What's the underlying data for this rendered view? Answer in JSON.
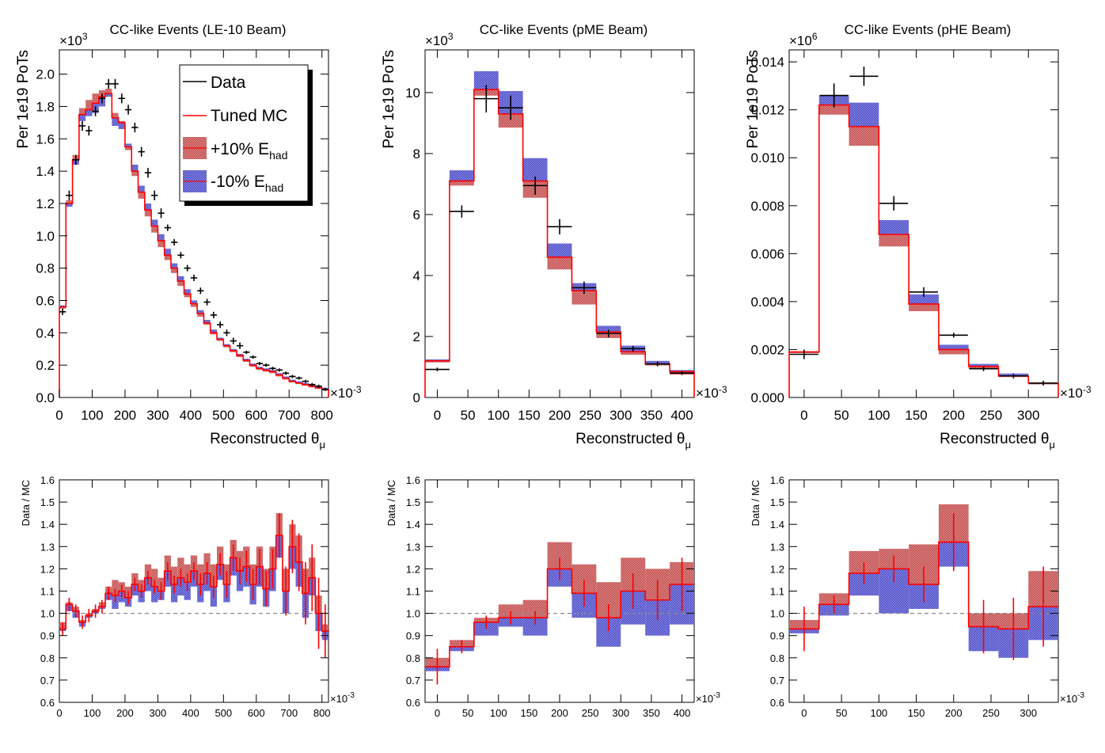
{
  "colors": {
    "data": "#000000",
    "tuned_mc": "#ff0000",
    "plus10_band": "#c44a4a",
    "minus10_band": "#4a4ac8",
    "reference_line": "#888888"
  },
  "legend": {
    "entries": [
      {
        "label": "Data",
        "type": "line",
        "color": "#000000"
      },
      {
        "label": "Tuned MC",
        "type": "line",
        "color": "#ff0000"
      },
      {
        "label": "+10% E",
        "sub": "had",
        "type": "band",
        "color": "#c44a4a"
      },
      {
        "label": "-10% E",
        "sub": "had",
        "type": "band",
        "color": "#4a4ac8"
      }
    ]
  },
  "chart_data": [
    {
      "type": "line",
      "title": "CC-like Events (LE-10 Beam)",
      "ylabel": "Per 1e19 PoTs",
      "xlabel": "Reconstructed θ",
      "xlabel_sub": "μ",
      "y_multiplier": "×10",
      "y_multiplier_exp": "3",
      "x_multiplier": "×10",
      "x_multiplier_exp": "-3",
      "xlim": [
        0,
        820
      ],
      "ylim": [
        0,
        2.15
      ],
      "xticks": [
        "0",
        "100",
        "200",
        "300",
        "400",
        "500",
        "600",
        "700",
        "800"
      ],
      "yticks": [
        "0.0",
        "0.2",
        "0.4",
        "0.6",
        "0.8",
        "1.0",
        "1.2",
        "1.4",
        "1.6",
        "1.8",
        "2.0"
      ],
      "legend_placement": "top-right",
      "bin_edges": [
        0,
        20,
        40,
        60,
        80,
        100,
        120,
        140,
        160,
        180,
        200,
        220,
        240,
        260,
        280,
        300,
        320,
        340,
        360,
        380,
        400,
        420,
        440,
        460,
        480,
        500,
        520,
        540,
        560,
        580,
        600,
        620,
        640,
        660,
        680,
        700,
        720,
        740,
        760,
        780,
        800,
        820
      ],
      "series": [
        {
          "name": "Tuned MC",
          "values": [
            0.56,
            1.2,
            1.47,
            1.75,
            1.78,
            1.82,
            1.86,
            1.88,
            1.73,
            1.7,
            1.55,
            1.4,
            1.27,
            1.16,
            1.06,
            0.97,
            0.88,
            0.8,
            0.72,
            0.64,
            0.58,
            0.52,
            0.46,
            0.4,
            0.36,
            0.32,
            0.29,
            0.26,
            0.23,
            0.2,
            0.18,
            0.17,
            0.16,
            0.14,
            0.12,
            0.1,
            0.09,
            0.08,
            0.07,
            0.06,
            0.05
          ]
        },
        {
          "name": "+10% E_had",
          "values": [
            0.55,
            1.22,
            1.5,
            1.79,
            1.84,
            1.88,
            1.9,
            1.91,
            1.76,
            1.71,
            1.53,
            1.37,
            1.23,
            1.12,
            1.02,
            0.93,
            0.85,
            0.77,
            0.69,
            0.62,
            0.56,
            0.5,
            0.45,
            0.39,
            0.35,
            0.31,
            0.28,
            0.25,
            0.22,
            0.19,
            0.17,
            0.16,
            0.15,
            0.13,
            0.11,
            0.1,
            0.09,
            0.08,
            0.07,
            0.06,
            0.05
          ]
        },
        {
          "name": "-10% E_had",
          "values": [
            0.57,
            1.18,
            1.44,
            1.71,
            1.74,
            1.76,
            1.8,
            1.86,
            1.68,
            1.66,
            1.57,
            1.44,
            1.31,
            1.2,
            1.1,
            1.01,
            0.92,
            0.83,
            0.75,
            0.67,
            0.6,
            0.54,
            0.48,
            0.42,
            0.37,
            0.33,
            0.3,
            0.27,
            0.24,
            0.21,
            0.19,
            0.18,
            0.17,
            0.15,
            0.13,
            0.11,
            0.1,
            0.09,
            0.08,
            0.07,
            0.06
          ]
        },
        {
          "name": "Data",
          "values": [
            0.53,
            1.25,
            1.47,
            1.68,
            1.65,
            1.77,
            1.85,
            1.94,
            1.94,
            1.85,
            1.78,
            1.67,
            1.52,
            1.39,
            1.25,
            1.14,
            1.05,
            0.96,
            0.88,
            0.8,
            0.74,
            0.66,
            0.59,
            0.51,
            0.45,
            0.4,
            0.35,
            0.32,
            0.28,
            0.25,
            0.21,
            0.2,
            0.18,
            0.17,
            0.15,
            0.13,
            0.12,
            0.1,
            0.08,
            0.07,
            0.05
          ],
          "errors": [
            0.02,
            0.03,
            0.03,
            0.03,
            0.03,
            0.03,
            0.03,
            0.03,
            0.03,
            0.03,
            0.03,
            0.03,
            0.03,
            0.03,
            0.03,
            0.03,
            0.02,
            0.02,
            0.02,
            0.02,
            0.02,
            0.02,
            0.02,
            0.02,
            0.02,
            0.02,
            0.02,
            0.02,
            0.01,
            0.01,
            0.01,
            0.01,
            0.01,
            0.01,
            0.01,
            0.01,
            0.01,
            0.01,
            0.01,
            0.01,
            0.01
          ]
        }
      ]
    },
    {
      "type": "line",
      "title": "CC-like Events (pME Beam)",
      "ylabel": "Per 1e19 PoTs",
      "xlabel": "Reconstructed θ",
      "xlabel_sub": "μ",
      "y_multiplier": "×10",
      "y_multiplier_exp": "3",
      "x_multiplier": "×10",
      "x_multiplier_exp": "-3",
      "xlim": [
        -20,
        420
      ],
      "ylim": [
        0,
        11.4
      ],
      "xticks": [
        "0",
        "50",
        "100",
        "150",
        "200",
        "250",
        "300",
        "350",
        "400"
      ],
      "yticks": [
        "0",
        "2",
        "4",
        "6",
        "8",
        "10"
      ],
      "bin_edges": [
        -20,
        20,
        60,
        100,
        140,
        180,
        220,
        260,
        300,
        340,
        380,
        420
      ],
      "series": [
        {
          "name": "Tuned MC",
          "values": [
            1.2,
            7.1,
            10.1,
            9.3,
            7.1,
            4.6,
            3.5,
            2.15,
            1.5,
            1.1,
            0.85
          ]
        },
        {
          "name": "+10% E_had",
          "values": [
            1.15,
            6.95,
            9.9,
            8.85,
            6.55,
            4.2,
            3.05,
            1.95,
            1.4,
            1.05,
            0.75
          ]
        },
        {
          "name": "-10% E_had",
          "values": [
            1.25,
            7.45,
            10.7,
            10.05,
            7.85,
            5.05,
            3.75,
            2.35,
            1.7,
            1.2,
            0.9
          ]
        },
        {
          "name": "Data",
          "values": [
            0.92,
            6.1,
            9.8,
            9.5,
            6.95,
            5.6,
            3.6,
            2.1,
            1.6,
            1.1,
            0.8
          ],
          "errors": [
            0.06,
            0.2,
            0.45,
            0.4,
            0.3,
            0.25,
            0.2,
            0.12,
            0.1,
            0.08,
            0.06
          ]
        }
      ]
    },
    {
      "type": "line",
      "title": "CC-like Events (pHE Beam)",
      "ylabel": "Per 1e19 PoTs",
      "xlabel": "Reconstructed θ",
      "xlabel_sub": "μ",
      "y_multiplier": "×10",
      "y_multiplier_exp": "6",
      "x_multiplier": "×10",
      "x_multiplier_exp": "-3",
      "xlim": [
        -20,
        340
      ],
      "ylim": [
        0,
        0.0145
      ],
      "xticks": [
        "0",
        "50",
        "100",
        "150",
        "200",
        "250",
        "300"
      ],
      "yticks": [
        "0.000",
        "0.002",
        "0.004",
        "0.006",
        "0.008",
        "0.010",
        "0.012",
        "0.014"
      ],
      "bin_edges": [
        -20,
        20,
        60,
        100,
        140,
        180,
        220,
        260,
        300,
        340
      ],
      "series": [
        {
          "name": "Tuned MC",
          "values": [
            0.0019,
            0.0122,
            0.0113,
            0.0068,
            0.0039,
            0.002,
            0.0013,
            0.0009,
            0.0006
          ]
        },
        {
          "name": "+10% E_had",
          "values": [
            0.0019,
            0.0118,
            0.0105,
            0.0063,
            0.0036,
            0.0018,
            0.0012,
            0.0009,
            0.0006
          ]
        },
        {
          "name": "-10% E_had",
          "values": [
            0.0019,
            0.0126,
            0.0123,
            0.0074,
            0.0043,
            0.0022,
            0.0014,
            0.001,
            0.0006
          ]
        },
        {
          "name": "Data",
          "values": [
            0.0018,
            0.0126,
            0.0134,
            0.0081,
            0.0044,
            0.0026,
            0.0012,
            0.0009,
            0.0006
          ],
          "errors": [
            0.0002,
            0.0005,
            0.0004,
            0.0003,
            0.0002,
            0.0001,
            0.0001,
            0.0001,
            0.0001
          ]
        }
      ]
    },
    {
      "type": "line",
      "ylabel": "Data / MC",
      "x_multiplier": "×10",
      "x_multiplier_exp": "-3",
      "xlim": [
        0,
        820
      ],
      "ylim": [
        0.6,
        1.6
      ],
      "xticks": [
        "0",
        "100",
        "200",
        "300",
        "400",
        "500",
        "600",
        "700",
        "800"
      ],
      "yticks": [
        "0.6",
        "0.7",
        "0.8",
        "0.9",
        "1.0",
        "1.1",
        "1.2",
        "1.3",
        "1.4",
        "1.5",
        "1.6"
      ],
      "reference": 1.0,
      "bin_edges": [
        0,
        20,
        40,
        60,
        80,
        100,
        120,
        140,
        160,
        180,
        200,
        220,
        240,
        260,
        280,
        300,
        320,
        340,
        360,
        380,
        400,
        420,
        440,
        460,
        480,
        500,
        520,
        540,
        560,
        580,
        600,
        620,
        640,
        660,
        680,
        700,
        720,
        740,
        760,
        780,
        800,
        820
      ],
      "series": [
        {
          "name": "+10% E_had",
          "values": [
            0.96,
            1.05,
            1.03,
            0.97,
            1.0,
            1.02,
            1.05,
            1.12,
            1.15,
            1.14,
            1.12,
            1.18,
            1.15,
            1.22,
            1.2,
            1.16,
            1.26,
            1.21,
            1.25,
            1.22,
            1.26,
            1.22,
            1.27,
            1.22,
            1.3,
            1.22,
            1.33,
            1.28,
            1.3,
            1.22,
            1.3,
            1.2,
            1.3,
            1.45,
            1.2,
            1.4,
            1.35,
            1.2,
            1.25,
            1.08,
            0.95
          ]
        },
        {
          "name": "-10% E_had",
          "values": [
            0.92,
            1.01,
            0.98,
            0.94,
            0.98,
            1.0,
            1.02,
            1.06,
            1.02,
            1.05,
            1.03,
            1.08,
            1.05,
            1.1,
            1.05,
            1.06,
            1.12,
            1.05,
            1.08,
            1.06,
            1.12,
            1.05,
            1.1,
            1.03,
            1.15,
            1.05,
            1.17,
            1.1,
            1.12,
            1.04,
            1.12,
            1.03,
            1.1,
            1.25,
            1.0,
            1.2,
            1.12,
            0.98,
            1.08,
            0.92,
            0.88
          ]
        },
        {
          "name": "Tuned MC",
          "values": [
            0.93,
            1.04,
            1.01,
            0.96,
            0.99,
            1.01,
            1.03,
            1.09,
            1.08,
            1.1,
            1.07,
            1.13,
            1.1,
            1.16,
            1.12,
            1.1,
            1.19,
            1.13,
            1.16,
            1.14,
            1.19,
            1.13,
            1.18,
            1.12,
            1.22,
            1.13,
            1.25,
            1.19,
            1.21,
            1.13,
            1.21,
            1.11,
            1.2,
            1.35,
            1.1,
            1.3,
            1.23,
            1.09,
            1.16,
            1.0,
            0.92
          ],
          "errors": [
            0.03,
            0.03,
            0.03,
            0.03,
            0.03,
            0.03,
            0.03,
            0.03,
            0.03,
            0.03,
            0.03,
            0.03,
            0.03,
            0.03,
            0.03,
            0.04,
            0.04,
            0.04,
            0.04,
            0.04,
            0.04,
            0.05,
            0.05,
            0.05,
            0.05,
            0.06,
            0.06,
            0.06,
            0.07,
            0.07,
            0.08,
            0.08,
            0.09,
            0.1,
            0.11,
            0.12,
            0.13,
            0.14,
            0.15,
            0.16,
            0.12
          ]
        }
      ]
    },
    {
      "type": "line",
      "ylabel": "Data / MC",
      "x_multiplier": "×10",
      "x_multiplier_exp": "-3",
      "xlim": [
        -20,
        420
      ],
      "ylim": [
        0.6,
        1.6
      ],
      "xticks": [
        "0",
        "50",
        "100",
        "150",
        "200",
        "250",
        "300",
        "350",
        "400"
      ],
      "yticks": [
        "0.6",
        "0.7",
        "0.8",
        "0.9",
        "1.0",
        "1.1",
        "1.2",
        "1.3",
        "1.4",
        "1.5",
        "1.6"
      ],
      "reference": 1.0,
      "bin_edges": [
        -20,
        20,
        60,
        100,
        140,
        180,
        220,
        260,
        300,
        340,
        380,
        420
      ],
      "series": [
        {
          "name": "+10% E_had",
          "values": [
            0.8,
            0.88,
            0.98,
            1.04,
            1.06,
            1.32,
            1.22,
            1.14,
            1.25,
            1.2,
            1.23
          ]
        },
        {
          "name": "-10% E_had",
          "values": [
            0.74,
            0.83,
            0.9,
            0.94,
            0.9,
            1.12,
            0.98,
            0.85,
            0.95,
            0.9,
            0.95
          ]
        },
        {
          "name": "Tuned MC",
          "values": [
            0.76,
            0.85,
            0.96,
            0.98,
            0.98,
            1.2,
            1.09,
            0.98,
            1.1,
            1.06,
            1.13
          ],
          "errors": [
            0.08,
            0.03,
            0.03,
            0.03,
            0.03,
            0.05,
            0.06,
            0.06,
            0.08,
            0.09,
            0.12
          ]
        }
      ]
    },
    {
      "type": "line",
      "ylabel": "Data / MC",
      "x_multiplier": "×10",
      "x_multiplier_exp": "-3",
      "xlim": [
        -20,
        340
      ],
      "ylim": [
        0.6,
        1.6
      ],
      "xticks": [
        "0",
        "50",
        "100",
        "150",
        "200",
        "250",
        "300"
      ],
      "yticks": [
        "0.6",
        "0.7",
        "0.8",
        "0.9",
        "1.0",
        "1.1",
        "1.2",
        "1.3",
        "1.4",
        "1.5",
        "1.6"
      ],
      "reference": 1.0,
      "bin_edges": [
        -20,
        20,
        60,
        100,
        140,
        180,
        220,
        260,
        300,
        340
      ],
      "series": [
        {
          "name": "+10% E_had",
          "values": [
            0.97,
            1.09,
            1.28,
            1.29,
            1.31,
            1.49,
            1.0,
            1.0,
            1.19
          ]
        },
        {
          "name": "-10% E_had",
          "values": [
            0.91,
            0.99,
            1.08,
            1.0,
            1.02,
            1.21,
            0.83,
            0.8,
            0.88
          ]
        },
        {
          "name": "Tuned MC",
          "values": [
            0.93,
            1.04,
            1.18,
            1.2,
            1.13,
            1.32,
            0.94,
            0.93,
            1.03
          ],
          "errors": [
            0.1,
            0.04,
            0.05,
            0.06,
            0.08,
            0.13,
            0.12,
            0.14,
            0.18
          ]
        }
      ]
    }
  ]
}
